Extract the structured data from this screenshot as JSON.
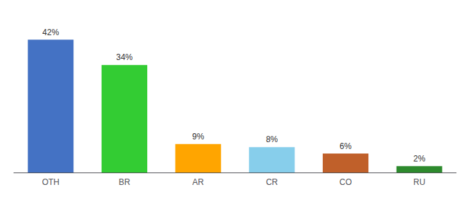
{
  "chart_data": {
    "type": "bar",
    "categories": [
      "OTH",
      "BR",
      "AR",
      "CR",
      "CO",
      "RU"
    ],
    "values": [
      42,
      34,
      9,
      8,
      6,
      2
    ],
    "value_labels": [
      "42%",
      "34%",
      "9%",
      "8%",
      "6%",
      "2%"
    ],
    "colors": [
      "#4472C4",
      "#33CC33",
      "#FFA500",
      "#87CEEB",
      "#C0602A",
      "#2D8A2D"
    ],
    "ylim": [
      0,
      48
    ],
    "data_labels": true,
    "tick_labels": "x",
    "grid": false
  }
}
